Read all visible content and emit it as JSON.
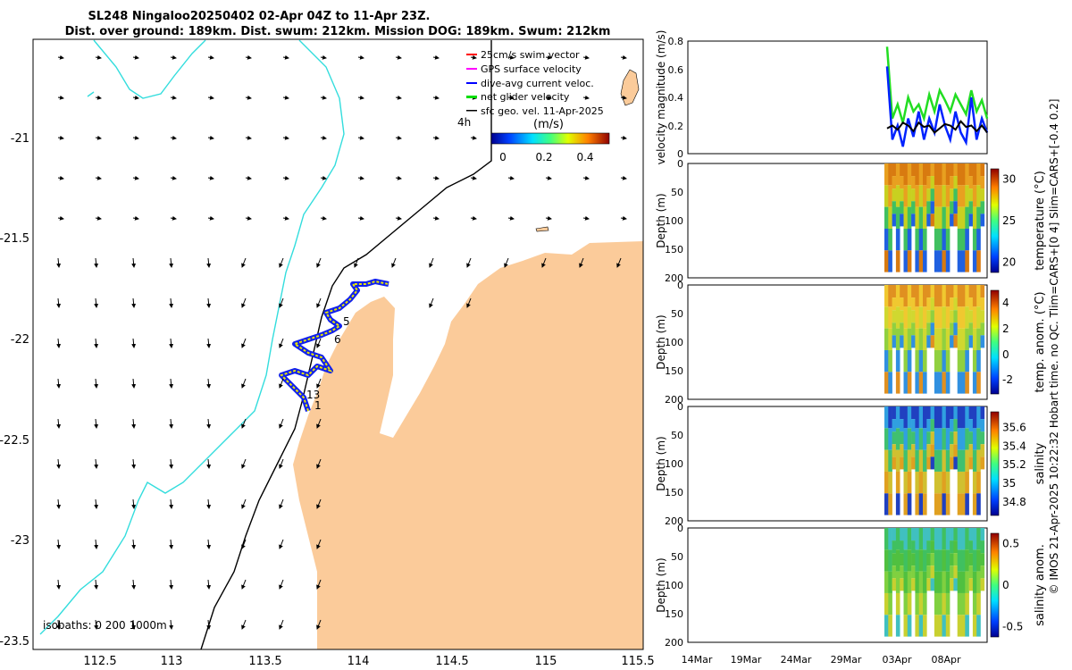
{
  "title": {
    "line1": "SL248 Ningaloo20250402 02-Apr 04Z to 11-Apr 23Z.",
    "line2": "Dist. over ground: 189km. Dist. swum: 212km. Mission DOG: 189km. Swum: 212km"
  },
  "map": {
    "legend": [
      {
        "label": "25cm/s swim vector",
        "color": "#ff0000"
      },
      {
        "label": "GPS surface velocity",
        "color": "#ff00ff"
      },
      {
        "label": "dive-avg current veloc.",
        "color": "#0000ff"
      },
      {
        "label": "net glider velocity",
        "color": "#00dd00"
      },
      {
        "label": "sfc geo. vel. 11-Apr-2025",
        "color": "#000000"
      }
    ],
    "legend_extra": "4h",
    "colorbar_label": "(m/s)",
    "colorbar_ticks": [
      "0",
      "0.2",
      "0.4"
    ],
    "isobaths_label": "isobaths: 0   200  1000m",
    "x_ticks": [
      "112.5",
      "113",
      "113.5",
      "114",
      "114.5",
      "115",
      "115.5"
    ],
    "y_ticks": [
      "-21",
      "-21.5",
      "-22",
      "-22.5",
      "-23",
      "-23.5"
    ],
    "waypoint_labels": [
      "5",
      "6",
      "13",
      "1"
    ]
  },
  "panels": {
    "velocity": {
      "ylabel": "velocity magnitude (m/s)",
      "y_ticks": [
        "0",
        "0.2",
        "0.4",
        "0.6",
        "0.8"
      ]
    },
    "depth_ylabel": "Depth (m)",
    "depth_ticks": [
      "0",
      "50",
      "100",
      "150",
      "200"
    ],
    "temperature": {
      "cb_label": "temperature (°C)",
      "cb_ticks": [
        "30",
        "25",
        "20"
      ]
    },
    "temp_anom": {
      "cb_label": "temp. anom. (°C)",
      "cb_ticks": [
        "4",
        "2",
        "0",
        "-2"
      ]
    },
    "salinity": {
      "cb_label": "salinity",
      "cb_ticks": [
        "35.6",
        "35.4",
        "35.2",
        "35",
        "34.8"
      ]
    },
    "sal_anom": {
      "cb_label": "salinity anom.",
      "cb_ticks": [
        "0.5",
        "0",
        "-0.5"
      ]
    },
    "x_ticks": [
      "14Mar",
      "19Mar",
      "24Mar",
      "29Mar",
      "03Apr",
      "08Apr"
    ]
  },
  "footer_vertical": "© IMOS 21-Apr-2025 10:22:32 Hobart time. no QC. Tlim=CARS+[0 4] Slim=CARS+[-0.4 0.2]",
  "chart_data": {
    "type": "line",
    "x_axis": "time",
    "x_ticks": [
      "14Mar",
      "19Mar",
      "24Mar",
      "29Mar",
      "03Apr",
      "08Apr"
    ],
    "ylabel": "velocity magnitude (m/s)",
    "ylim": [
      0,
      0.8
    ],
    "series": [
      {
        "name": "net glider velocity",
        "color": "#22dd22",
        "values": [
          0.76,
          0.25,
          0.35,
          0.22,
          0.4,
          0.3,
          0.35,
          0.25,
          0.42,
          0.3,
          0.45,
          0.38,
          0.3,
          0.42,
          0.35,
          0.28,
          0.45,
          0.3,
          0.38,
          0.25
        ]
      },
      {
        "name": "dive-avg current veloc.",
        "color": "#0022ff",
        "values": [
          0.62,
          0.1,
          0.2,
          0.05,
          0.25,
          0.12,
          0.3,
          0.1,
          0.25,
          0.15,
          0.35,
          0.2,
          0.1,
          0.3,
          0.15,
          0.08,
          0.4,
          0.1,
          0.25,
          0.15
        ]
      },
      {
        "name": "sfc geo. vel.",
        "color": "#000000",
        "values": [
          0.18,
          0.2,
          0.17,
          0.22,
          0.2,
          0.16,
          0.22,
          0.19,
          0.2,
          0.15,
          0.18,
          0.21,
          0.2,
          0.17,
          0.23,
          0.19,
          0.2,
          0.16,
          0.2,
          0.15
        ]
      }
    ]
  }
}
